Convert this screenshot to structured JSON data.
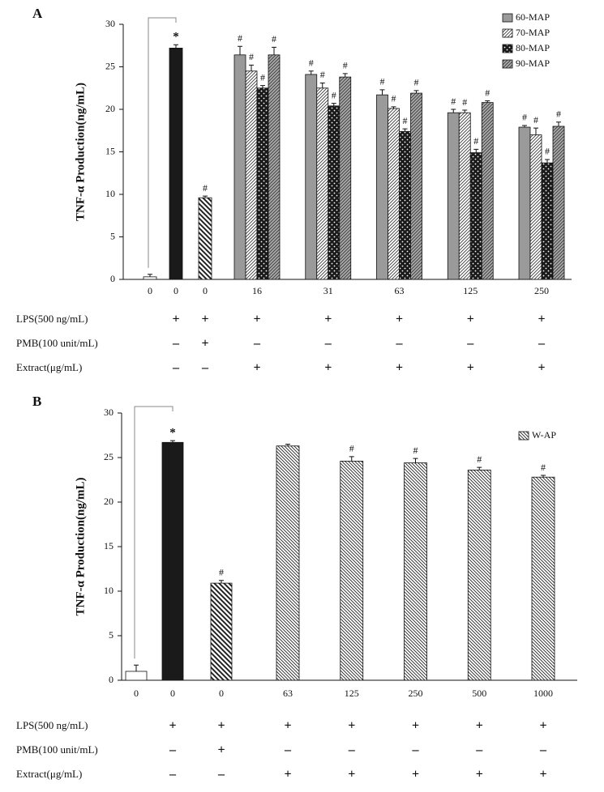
{
  "chart_data": [
    {
      "type": "bar",
      "panel_label": "A",
      "ylabel": "TNF-α Production(ng/mL)",
      "categories": [
        "0",
        "0",
        "0",
        "16",
        "31",
        "63",
        "125",
        "250"
      ],
      "ylim": [
        0,
        30
      ],
      "yticks": [
        0,
        5,
        10,
        15,
        20,
        25,
        30
      ],
      "legend": "top-right",
      "series": [
        {
          "colors": [
            "#ffffff",
            "#1a1a1a",
            "#ffffff",
            null,
            null,
            null,
            null,
            null
          ],
          "patterns": [
            "solid",
            "solid",
            "hatch-thick",
            null,
            null,
            null,
            null,
            null
          ],
          "values": [
            0.3,
            27.2,
            9.6,
            null,
            null,
            null,
            null,
            null
          ],
          "errors": [
            0.3,
            0.4,
            0.2,
            null,
            null,
            null,
            null,
            null
          ],
          "marks": [
            null,
            "*",
            "#",
            null,
            null,
            null,
            null,
            null
          ]
        },
        {
          "name": "60-MAP",
          "color": "#9a9a9a",
          "pattern": "solid",
          "values": [
            null,
            null,
            null,
            26.4,
            24.1,
            21.7,
            19.6,
            17.9
          ],
          "errors": [
            null,
            null,
            null,
            1.0,
            0.4,
            0.6,
            0.4,
            0.2
          ],
          "marks": [
            null,
            null,
            null,
            "#",
            "#",
            "#",
            "#",
            "#"
          ]
        },
        {
          "name": "70-MAP",
          "color": "#ffffff",
          "pattern": "slash",
          "values": [
            null,
            null,
            null,
            24.5,
            22.5,
            20.1,
            19.6,
            17.0
          ],
          "errors": [
            null,
            null,
            null,
            0.7,
            0.6,
            0.2,
            0.3,
            0.8
          ],
          "marks": [
            null,
            null,
            null,
            "#",
            "#",
            "#",
            "#",
            "#"
          ]
        },
        {
          "name": "80-MAP",
          "color": "#1a1a1a",
          "pattern": "dots",
          "values": [
            null,
            null,
            null,
            22.5,
            20.4,
            17.4,
            14.9,
            13.7
          ],
          "errors": [
            null,
            null,
            null,
            0.3,
            0.3,
            0.3,
            0.4,
            0.4
          ],
          "marks": [
            null,
            null,
            null,
            "#",
            "#",
            "#",
            "#",
            "#"
          ]
        },
        {
          "name": "90-MAP",
          "color": "#a8a8a8",
          "pattern": "slash",
          "values": [
            null,
            null,
            null,
            26.4,
            23.8,
            21.9,
            20.8,
            18.0
          ],
          "errors": [
            null,
            null,
            null,
            0.9,
            0.4,
            0.3,
            0.2,
            0.5
          ],
          "marks": [
            null,
            null,
            null,
            "#",
            "#",
            "#",
            "#",
            "#"
          ]
        }
      ],
      "conditions": [
        {
          "label": "LPS(500 ng/mL)",
          "values": [
            null,
            "+",
            "+",
            "+",
            "+",
            "+",
            "+",
            "+"
          ]
        },
        {
          "label": "PMB(100 unit/mL)",
          "values": [
            null,
            "–",
            "+",
            "–",
            "–",
            "–",
            "–",
            "–"
          ]
        },
        {
          "label": "Extract(μg/mL)",
          "values": [
            null,
            "–",
            "–",
            "+",
            "+",
            "+",
            "+",
            "+"
          ]
        }
      ]
    },
    {
      "type": "bar",
      "panel_label": "B",
      "ylabel": "TNF-α Production(ng/mL)",
      "categories": [
        "0",
        "0",
        "0",
        "63",
        "125",
        "250",
        "500",
        "1000"
      ],
      "ylim": [
        0,
        30
      ],
      "yticks": [
        0,
        5,
        10,
        15,
        20,
        25,
        30
      ],
      "legend": "top-right",
      "series": [
        {
          "colors": [
            "#ffffff",
            "#1a1a1a",
            "#ffffff",
            null,
            null,
            null,
            null,
            null
          ],
          "patterns": [
            "solid",
            "solid",
            "hatch-thick",
            null,
            null,
            null,
            null,
            null
          ],
          "values": [
            1.0,
            26.7,
            10.9,
            null,
            null,
            null,
            null,
            null
          ],
          "errors": [
            0.7,
            0.2,
            0.3,
            null,
            null,
            null,
            null,
            null
          ],
          "marks": [
            null,
            "*",
            "#",
            null,
            null,
            null,
            null,
            null
          ]
        },
        {
          "name": "W-AP",
          "color": "#ffffff",
          "pattern": "hatch",
          "values": [
            null,
            null,
            null,
            26.3,
            24.6,
            24.4,
            23.6,
            22.8
          ],
          "errors": [
            null,
            null,
            null,
            0.2,
            0.5,
            0.5,
            0.3,
            0.2
          ],
          "marks": [
            null,
            null,
            null,
            null,
            "#",
            "#",
            "#",
            "#"
          ]
        }
      ],
      "conditions": [
        {
          "label": "LPS(500 ng/mL)",
          "values": [
            null,
            "+",
            "+",
            "+",
            "+",
            "+",
            "+",
            "+"
          ]
        },
        {
          "label": "PMB(100 unit/mL)",
          "values": [
            null,
            "–",
            "+",
            "–",
            "–",
            "–",
            "–",
            "–"
          ]
        },
        {
          "label": "Extract(μg/mL)",
          "values": [
            null,
            "–",
            "–",
            "+",
            "+",
            "+",
            "+",
            "+"
          ]
        }
      ]
    }
  ]
}
